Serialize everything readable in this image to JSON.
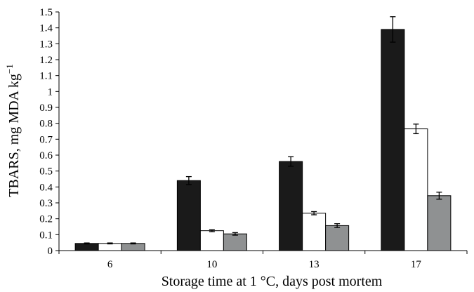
{
  "chart_data": {
    "type": "bar",
    "xlabel": "Storage time at 1 °C, days post mortem",
    "ylabel": {
      "text": "TBARS, mg MDA kg",
      "superscript": "−1"
    },
    "ylim": [
      0,
      1.5
    ],
    "y_ticks": [
      "0",
      "0.1",
      "0.2",
      "0.3",
      "0.4",
      "0.5",
      "0.6",
      "0.7",
      "0.8",
      "0.9",
      "1",
      "1.1",
      "1.2",
      "1.3",
      "1.4",
      "1.5"
    ],
    "categories": [
      "6",
      "10",
      "13",
      "17"
    ],
    "grid": false,
    "legend": "none",
    "series": [
      {
        "color": "#1a1a1a",
        "values": [
          0.045,
          0.44,
          0.56,
          1.39
        ],
        "errors": [
          0.003,
          0.025,
          0.03,
          0.08
        ]
      },
      {
        "color": "#ffffff",
        "values": [
          0.045,
          0.125,
          0.235,
          0.765
        ],
        "errors": [
          0.003,
          0.006,
          0.01,
          0.03
        ]
      },
      {
        "color": "#8f9192",
        "values": [
          0.045,
          0.105,
          0.157,
          0.345
        ],
        "errors": [
          0.003,
          0.008,
          0.012,
          0.022
        ]
      }
    ]
  }
}
